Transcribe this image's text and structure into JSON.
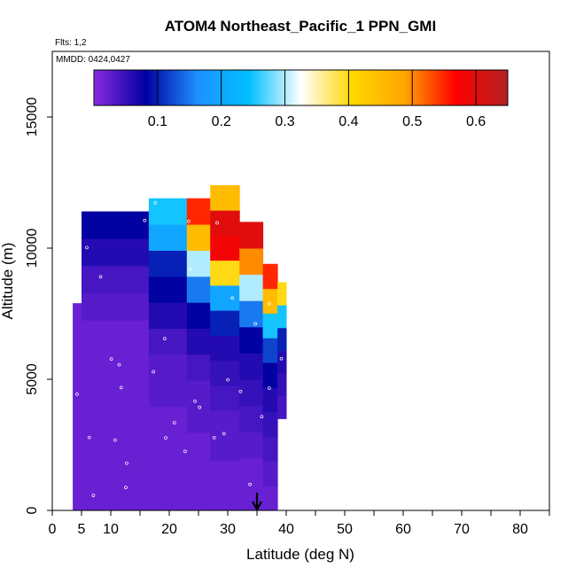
{
  "chart_data": {
    "type": "heatmap",
    "title": "ATOM4 Northeast_Pacific_1 PPN_GMI",
    "annotation_flights": "Flts: 1,2",
    "annotation_dates": "MMDD: 0424,0427",
    "xlabel": "Latitude (deg N)",
    "ylabel": "Altitude (m)",
    "xlim": [
      0,
      85
    ],
    "ylim": [
      0,
      17500
    ],
    "x_ticks": [
      0,
      5,
      10,
      20,
      30,
      40,
      50,
      60,
      70,
      80
    ],
    "x_minor_ticks": [
      15,
      25,
      35,
      45,
      55,
      65,
      75,
      85
    ],
    "y_ticks": [
      0,
      5000,
      10000,
      15000
    ],
    "colorbar": {
      "min": 0,
      "max": 0.65,
      "ticks": [
        0.1,
        0.2,
        0.3,
        0.4,
        0.5,
        0.6
      ],
      "tick_labels": [
        "0.1",
        "0.2",
        "0.3",
        "0.4",
        "0.5",
        "0.6"
      ],
      "colors": [
        "#8a2be2",
        "#0000a0",
        "#1e90ff",
        "#00bfff",
        "#ffffff",
        "#ffd700",
        "#ffa500",
        "#ff0000",
        "#b22222"
      ]
    },
    "arrow_marker_latitude": 35,
    "value_columns": [
      {
        "lat_min": 3.5,
        "lat_max": 5,
        "alt_min": 0,
        "alt_max": 7900,
        "value_levels": [
          0.02
        ]
      },
      {
        "lat_min": 5,
        "lat_max": 16.5,
        "alt_min": 0,
        "alt_max": 11400,
        "value_levels": [
          0.02,
          0.02,
          0.02,
          0.02,
          0.02,
          0.02,
          0.02,
          0.03,
          0.04,
          0.06,
          0.08
        ]
      },
      {
        "lat_min": 16.5,
        "lat_max": 23,
        "alt_min": 0,
        "alt_max": 11900,
        "value_levels": [
          0.02,
          0.02,
          0.02,
          0.02,
          0.03,
          0.03,
          0.04,
          0.06,
          0.08,
          0.1,
          0.2,
          0.25
        ]
      },
      {
        "lat_min": 23,
        "lat_max": 27,
        "alt_min": 0,
        "alt_max": 11900,
        "value_levels": [
          0.02,
          0.02,
          0.02,
          0.03,
          0.03,
          0.04,
          0.06,
          0.08,
          0.15,
          0.3,
          0.45,
          0.55
        ]
      },
      {
        "lat_min": 27,
        "lat_max": 32,
        "alt_min": 0,
        "alt_max": 12400,
        "value_levels": [
          0.02,
          0.02,
          0.03,
          0.03,
          0.04,
          0.05,
          0.06,
          0.1,
          0.2,
          0.4,
          0.58,
          0.6,
          0.45
        ]
      },
      {
        "lat_min": 32,
        "lat_max": 36,
        "alt_min": 0,
        "alt_max": 11000,
        "value_levels": [
          0.02,
          0.02,
          0.03,
          0.04,
          0.05,
          0.06,
          0.08,
          0.15,
          0.3,
          0.5,
          0.6
        ]
      },
      {
        "lat_min": 36,
        "lat_max": 38.5,
        "alt_min": 0,
        "alt_max": 9400,
        "value_levels": [
          0.02,
          0.03,
          0.04,
          0.05,
          0.06,
          0.08,
          0.12,
          0.25,
          0.45,
          0.55
        ]
      },
      {
        "lat_min": 38.5,
        "lat_max": 40,
        "alt_min": 3500,
        "alt_max": 8700,
        "value_levels": [
          0.04,
          0.05,
          0.06,
          0.1,
          0.25,
          0.4
        ]
      }
    ]
  }
}
